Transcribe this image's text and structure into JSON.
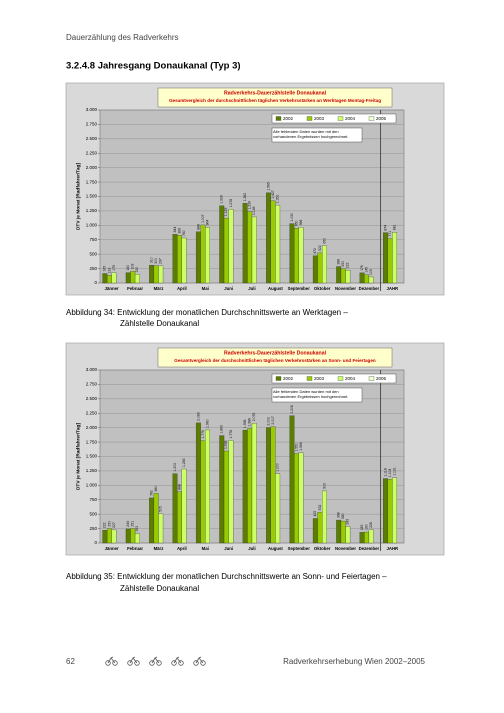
{
  "header": "Dauerzählung des Radverkehrs",
  "section_title": "3.2.4.8  Jahresgang Donaukanal (Typ 3)",
  "captions": [
    [
      "Abbildung 34: Entwicklung der monatlichen Durchschnittswerte an Werktagen –",
      "Zählstelle Donaukanal"
    ],
    [
      "Abbildung 35: Entwicklung der monatlichen Durchschnittswerte an Sonn- und Feiertagen –",
      "Zählstelle Donaukanal"
    ]
  ],
  "footer": {
    "page_number": "62",
    "text": "Radverkehrserhebung Wien 2002–2005"
  },
  "chart_data": [
    {
      "type": "bar",
      "title": "Radverkehrs-Dauerzählstelle Donaukanal",
      "subtitle": "Gesamtvergleich der durchschnittlichen täglichen Verkehrsstärken an Werktagen Montag-Freitag",
      "y_label": "DTV je Monat [Radfahrer/Tag]",
      "annotation": "Alle fehlenden Daten wurden mit den vorhandenen Ergebnissen hochgerechnet.",
      "categories": [
        "Jänner",
        "Februar",
        "März",
        "April",
        "Mai",
        "Juni",
        "Juli",
        "August",
        "September",
        "Oktober",
        "November",
        "Dezember",
        "JAHR"
      ],
      "series": [
        {
          "name": "2002",
          "color": "#5b7d00",
          "values": [
            165,
            180,
            310,
            844,
            888,
            1339,
            1382,
            1565,
            1030,
            472,
            286,
            176,
            874
          ],
          "value_labels": [
            "165",
            "180",
            "310",
            "844",
            "888",
            "1.339",
            "1.382",
            "1.565",
            "1.030",
            "472",
            "286",
            "176",
            "874"
          ]
        },
        {
          "name": "2003",
          "color": "#99cc00",
          "values": [
            133,
            203,
            300,
            826,
            1007,
            1125,
            1239,
            1427,
            950,
            522,
            250,
            145,
            771
          ],
          "value_labels": [
            "133",
            "203",
            "300",
            "826",
            "1.007",
            "1.125",
            "1.239",
            "1.427",
            "950",
            "522",
            "250",
            "145",
            "771"
          ]
        },
        {
          "name": "2004",
          "color": "#ccff66",
          "values": [
            179,
            150,
            297,
            780,
            964,
            1278,
            1145,
            1351,
            966,
            650,
            222,
            105,
            881
          ],
          "value_labels": [
            "179",
            "150",
            "297",
            "780",
            "964",
            "1.278",
            "1.145",
            "1.351",
            "966",
            "650",
            "222",
            "105",
            "881"
          ]
        },
        {
          "name": "2005",
          "color": "#eeffcc",
          "values": [
            null,
            null,
            null,
            null,
            null,
            null,
            null,
            null,
            null,
            null,
            null,
            null,
            null
          ],
          "value_labels": [
            null,
            null,
            null,
            null,
            null,
            null,
            null,
            null,
            null,
            null,
            null,
            null,
            null
          ]
        }
      ],
      "ylim": [
        0,
        3000
      ],
      "yticks": [
        0,
        250,
        500,
        750,
        {
          "value": 1000,
          "label": "1.000"
        },
        {
          "value": 1250,
          "label": "1.250"
        },
        {
          "value": 1500,
          "label": "1.500"
        },
        {
          "value": 1750,
          "label": "1.750"
        },
        {
          "value": 2000,
          "label": "2.000"
        },
        {
          "value": 2250,
          "label": "2.250"
        },
        {
          "value": 2500,
          "label": "2.500"
        },
        {
          "value": 2750,
          "label": "2.750"
        },
        {
          "value": 3000,
          "label": "3.000"
        }
      ],
      "grid": true,
      "legend": "top-right"
    },
    {
      "type": "bar",
      "title": "Radverkehrs-Dauerzählstelle Donaukanal",
      "subtitle": "Gesamtvergleich der durchschnittlichen täglichen Verkehrsstärken an Sonn- und Feiertagen",
      "y_label": "DTV je Monat [Radfahrer/Tag]",
      "annotation": "Alle fehlenden Daten wurden mit den vorhandenen Ergebnissen hochgerechnet.",
      "categories": [
        "Jänner",
        "Februar",
        "März",
        "April",
        "Mai",
        "Juni",
        "Juli",
        "August",
        "September",
        "Oktober",
        "November",
        "Dezember",
        "JAHR"
      ],
      "series": [
        {
          "name": "2002",
          "color": "#5b7d00",
          "values": [
            222,
            244,
            782,
            1203,
            2083,
            1863,
            1958,
            2002,
            2208,
            425,
            398,
            185,
            1118
          ],
          "value_labels": [
            "222",
            "244",
            "782",
            "1.203",
            "2.083",
            "1.863",
            "1.958",
            "2.002",
            "2.208",
            "425",
            "398",
            "185",
            "1.118"
          ]
        },
        {
          "name": "2003",
          "color": "#99cc00",
          "values": [
            250,
            251,
            860,
            888,
            1776,
            1595,
            1986,
            2017,
            1551,
            532,
            380,
            190,
            1104
          ],
          "value_labels": [
            "250",
            "251",
            "860",
            "888",
            "1.776",
            "1.595",
            "1.986",
            "2.017",
            "1.551",
            "532",
            "380",
            "190",
            "1.104"
          ]
        },
        {
          "name": "2004",
          "color": "#ccff66",
          "values": [
            227,
            163,
            505,
            1283,
            1960,
            1778,
            2078,
            1200,
            1566,
            903,
            285,
            228,
            1131
          ],
          "value_labels": [
            "227",
            "163",
            "505",
            "1.283",
            "1.960",
            "1.778",
            "2.078",
            "1.200",
            "1.566",
            "903",
            "285",
            "228",
            "1.131"
          ]
        },
        {
          "name": "2005",
          "color": "#eeffcc",
          "values": [
            null,
            null,
            null,
            null,
            null,
            null,
            null,
            null,
            null,
            null,
            null,
            null,
            null
          ],
          "value_labels": [
            null,
            null,
            null,
            null,
            null,
            null,
            null,
            null,
            null,
            null,
            null,
            null,
            null
          ]
        }
      ],
      "ylim": [
        0,
        3000
      ],
      "yticks": [
        0,
        250,
        500,
        750,
        {
          "value": 1000,
          "label": "1.000"
        },
        {
          "value": 1250,
          "label": "1.250"
        },
        {
          "value": 1500,
          "label": "1.500"
        },
        {
          "value": 1750,
          "label": "1.750"
        },
        {
          "value": 2000,
          "label": "2.000"
        },
        {
          "value": 2250,
          "label": "2.250"
        },
        {
          "value": 2500,
          "label": "2.500"
        },
        {
          "value": 2750,
          "label": "2.750"
        },
        {
          "value": 3000,
          "label": "3.000"
        }
      ],
      "grid": true,
      "legend": "top-right"
    }
  ]
}
